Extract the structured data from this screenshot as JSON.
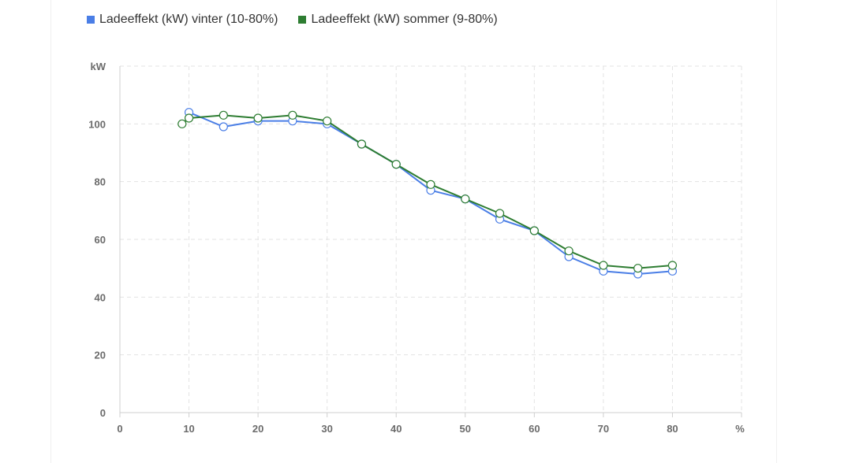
{
  "chart_data": {
    "type": "line",
    "title": "",
    "xlabel": "%",
    "ylabel": "kW",
    "xlim": [
      0,
      90
    ],
    "ylim": [
      0,
      120
    ],
    "xticks": [
      0,
      10,
      20,
      30,
      40,
      50,
      60,
      70,
      80
    ],
    "yticks": [
      0,
      20,
      40,
      60,
      80,
      100
    ],
    "grid": true,
    "legend": "top-left",
    "series": [
      {
        "name": "Ladeeffekt (kW) vinter (10-80%)",
        "color": "#4a7ee6",
        "x": [
          10,
          15,
          20,
          25,
          30,
          35,
          40,
          45,
          50,
          55,
          60,
          65,
          70,
          75,
          80
        ],
        "y": [
          104,
          99,
          101,
          101,
          100,
          93,
          86,
          77,
          74,
          67,
          63,
          54,
          49,
          48,
          49
        ]
      },
      {
        "name": "Ladeeffekt (kW) sommer (9-80%)",
        "color": "#2e7d32",
        "x": [
          9,
          10,
          15,
          20,
          25,
          30,
          35,
          40,
          45,
          50,
          55,
          60,
          65,
          70,
          75,
          80
        ],
        "y": [
          100,
          102,
          103,
          102,
          103,
          101,
          93,
          86,
          79,
          74,
          69,
          63,
          56,
          51,
          50,
          51
        ]
      }
    ]
  }
}
